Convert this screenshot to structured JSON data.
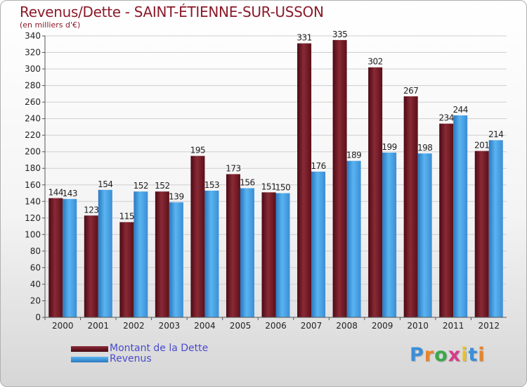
{
  "title": "Revenus/Dette - SAINT-ÉTIENNE-SUR-USSON",
  "subtitle": "(en milliers d'€)",
  "logo": {
    "letters": [
      "P",
      "r",
      "o",
      "x",
      "i",
      "t",
      "i"
    ],
    "colors": [
      "#3a8fd8",
      "#e8842a",
      "#3aa84a",
      "#d83a8a",
      "#e8c22a",
      "#3a8fd8",
      "#e8842a"
    ]
  },
  "colors": {
    "dette": "#7a1f2b",
    "revenus": "#4aa6e8"
  },
  "chart_data": {
    "type": "bar",
    "title": "Revenus/Dette - SAINT-ÉTIENNE-SUR-USSON",
    "subtitle": "(en milliers d'€)",
    "categories": [
      "2000",
      "2001",
      "2002",
      "2003",
      "2004",
      "2005",
      "2006",
      "2007",
      "2008",
      "2009",
      "2010",
      "2011",
      "2012"
    ],
    "series": [
      {
        "name": "Montant de la Dette",
        "values": [
          144,
          123,
          115,
          152,
          195,
          173,
          151,
          331,
          335,
          302,
          267,
          234,
          201
        ]
      },
      {
        "name": "Revenus",
        "values": [
          143,
          154,
          152,
          139,
          153,
          156,
          150,
          176,
          189,
          199,
          198,
          244,
          214
        ]
      }
    ],
    "ylim": [
      0,
      340
    ],
    "yticks": [
      0,
      20,
      40,
      60,
      80,
      100,
      120,
      140,
      160,
      180,
      200,
      220,
      240,
      260,
      280,
      300,
      320,
      340
    ],
    "grid": true,
    "legend": "bottom-left"
  }
}
